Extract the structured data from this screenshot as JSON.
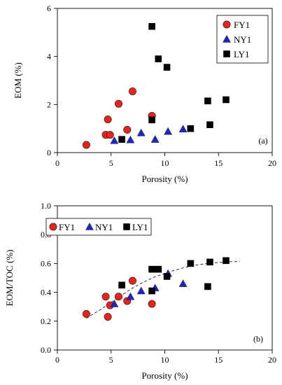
{
  "colors": {
    "FY1": "#e8231c",
    "NY1": "#1f26b8",
    "LY1": "#000000",
    "axis": "#000000",
    "trend": "#333333"
  },
  "chart_data": [
    {
      "type": "scatter",
      "panel_label": "(a)",
      "xlabel": "Porosity (%)",
      "ylabel": "EOM (%)",
      "xlim": [
        0,
        20
      ],
      "ylim": [
        0,
        6
      ],
      "xticks": [
        0,
        5,
        10,
        15,
        20
      ],
      "yticks": [
        0,
        2,
        4,
        6
      ],
      "ytick_format": "int",
      "grid": false,
      "legend_placement": "top-right",
      "series": [
        {
          "name": "FY1",
          "marker": "circle",
          "color": "#e8231c",
          "points": [
            [
              2.7,
              0.32
            ],
            [
              4.5,
              0.74
            ],
            [
              4.7,
              1.38
            ],
            [
              4.9,
              0.74
            ],
            [
              5.7,
              2.03
            ],
            [
              6.5,
              0.95
            ],
            [
              7.0,
              2.55
            ],
            [
              8.8,
              1.53
            ]
          ]
        },
        {
          "name": "NY1",
          "marker": "triangle",
          "color": "#1f26b8",
          "points": [
            [
              5.3,
              0.5
            ],
            [
              6.8,
              0.53
            ],
            [
              7.8,
              0.82
            ],
            [
              9.1,
              0.55
            ],
            [
              10.3,
              0.88
            ],
            [
              11.7,
              0.98
            ]
          ]
        },
        {
          "name": "LY1",
          "marker": "square",
          "color": "#000000",
          "points": [
            [
              6.0,
              0.55
            ],
            [
              8.8,
              1.36
            ],
            [
              8.8,
              5.25
            ],
            [
              9.4,
              3.9
            ],
            [
              10.2,
              3.55
            ],
            [
              12.4,
              1.0
            ],
            [
              14.0,
              2.15
            ],
            [
              14.2,
              1.16
            ],
            [
              15.7,
              2.2
            ]
          ]
        }
      ]
    },
    {
      "type": "scatter",
      "panel_label": "(b)",
      "xlabel": "Porosity (%)",
      "ylabel": "EOM/TOC (%)",
      "xlim": [
        0,
        20
      ],
      "ylim": [
        0,
        1.0
      ],
      "xticks": [
        0,
        5,
        10,
        15,
        20
      ],
      "yticks": [
        0,
        0.2,
        0.4,
        0.6,
        0.8,
        1.0
      ],
      "ytick_format": "1dp",
      "grid": false,
      "legend_placement": "top-left",
      "series": [
        {
          "name": "FY1",
          "marker": "circle",
          "color": "#e8231c",
          "points": [
            [
              2.7,
              0.25
            ],
            [
              4.5,
              0.37
            ],
            [
              4.7,
              0.23
            ],
            [
              4.9,
              0.31
            ],
            [
              5.7,
              0.37
            ],
            [
              6.5,
              0.34
            ],
            [
              7.0,
              0.48
            ],
            [
              8.8,
              0.32
            ]
          ]
        },
        {
          "name": "NY1",
          "marker": "triangle",
          "color": "#1f26b8",
          "points": [
            [
              5.3,
              0.32
            ],
            [
              6.8,
              0.37
            ],
            [
              7.8,
              0.41
            ],
            [
              9.1,
              0.43
            ],
            [
              10.3,
              0.53
            ],
            [
              11.7,
              0.46
            ]
          ]
        },
        {
          "name": "LY1",
          "marker": "square",
          "color": "#000000",
          "points": [
            [
              6.0,
              0.45
            ],
            [
              8.8,
              0.56
            ],
            [
              8.8,
              0.41
            ],
            [
              9.4,
              0.56
            ],
            [
              10.2,
              0.51
            ],
            [
              12.4,
              0.6
            ],
            [
              14.0,
              0.44
            ],
            [
              14.2,
              0.61
            ],
            [
              15.7,
              0.62
            ]
          ]
        }
      ],
      "trend_line": {
        "style": "dashed",
        "points": [
          [
            2.7,
            0.22
          ],
          [
            4.0,
            0.28
          ],
          [
            5.0,
            0.33
          ],
          [
            6.0,
            0.38
          ],
          [
            7.0,
            0.43
          ],
          [
            8.0,
            0.47
          ],
          [
            9.0,
            0.505
          ],
          [
            10.0,
            0.53
          ],
          [
            11.0,
            0.555
          ],
          [
            12.0,
            0.575
          ],
          [
            13.0,
            0.59
          ],
          [
            14.0,
            0.6
          ],
          [
            15.0,
            0.607
          ],
          [
            16.0,
            0.612
          ],
          [
            17.0,
            0.614
          ]
        ]
      }
    }
  ]
}
